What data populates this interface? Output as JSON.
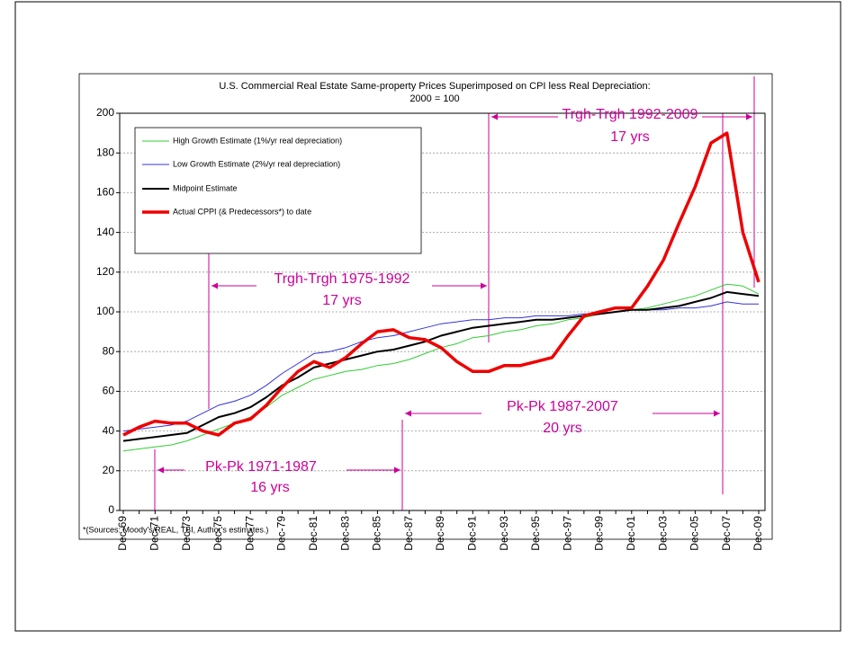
{
  "chart_data": {
    "type": "line",
    "title": "U.S. Commercial Real Estate Same-property Prices Superimposed on CPI less Real Depreciation:",
    "subtitle": "2000 = 100",
    "footnote": "*(Sources: Moody's/REAL, TBI, Author's estimates.)",
    "categories": [
      "Dec-69",
      null,
      "Dec-71",
      null,
      "Dec-73",
      null,
      "Dec-75",
      null,
      "Dec-77",
      null,
      "Dec-79",
      null,
      "Dec-81",
      null,
      "Dec-83",
      null,
      "Dec-85",
      null,
      "Dec-87",
      null,
      "Dec-89",
      null,
      "Dec-91",
      null,
      "Dec-93",
      null,
      "Dec-95",
      null,
      "Dec-97",
      null,
      "Dec-99",
      null,
      "Dec-01",
      null,
      "Dec-03",
      null,
      "Dec-05",
      null,
      "Dec-07",
      null,
      "Dec-09"
    ],
    "series": [
      {
        "name": "High Growth Estimate (1%/yr real depreciation)",
        "color": "#33cc33",
        "width": 1,
        "values": [
          30,
          31,
          32,
          33,
          35,
          38,
          41,
          44,
          47,
          52,
          58,
          62,
          66,
          68,
          70,
          71,
          73,
          74,
          76,
          79,
          82,
          84,
          87,
          88,
          90,
          91,
          93,
          94,
          96,
          97,
          99,
          100,
          101,
          102,
          104,
          106,
          108,
          111,
          114,
          113,
          109
        ]
      },
      {
        "name": "Low Growth Estimate (2%/yr real depreciation)",
        "color": "#3333dd",
        "width": 1,
        "values": [
          40,
          41,
          42,
          43,
          45,
          49,
          53,
          55,
          58,
          63,
          69,
          74,
          79,
          80,
          82,
          85,
          87,
          88,
          90,
          92,
          94,
          95,
          96,
          96,
          97,
          97,
          98,
          98,
          98,
          99,
          99,
          100,
          101,
          101,
          101,
          102,
          102,
          103,
          105,
          104,
          104
        ]
      },
      {
        "name": "Midpoint Estimate",
        "color": "#000000",
        "width": 2,
        "values": [
          35,
          36,
          37,
          38,
          39,
          43,
          47,
          49,
          52,
          57,
          63,
          67,
          72,
          74,
          76,
          78,
          80,
          81,
          83,
          85,
          88,
          90,
          92,
          93,
          94,
          95,
          96,
          96,
          97,
          98,
          99,
          100,
          101,
          101,
          102,
          103,
          105,
          107,
          110,
          109,
          108
        ]
      },
      {
        "name": "Actual CPPI (& Predecessors*) to date",
        "color": "#ee0000",
        "width": 3.5,
        "values": [
          38,
          42,
          45,
          44,
          44,
          40,
          38,
          44,
          46,
          53,
          62,
          70,
          75,
          72,
          77,
          84,
          90,
          91,
          87,
          86,
          82,
          75,
          70,
          70,
          73,
          73,
          75,
          77,
          88,
          98,
          100,
          102,
          102,
          113,
          126,
          145,
          163,
          185,
          190,
          140,
          115
        ]
      }
    ],
    "annotations": [
      "Trgh-Trgh 1992-2009",
      "17 yrs",
      "Trgh-Trgh 1975-1992",
      "17 yrs",
      "Pk-Pk 1987-2007",
      "20 yrs",
      "Pk-Pk 1971-1987",
      "16 yrs"
    ],
    "ylim": [
      0,
      200
    ],
    "yticks": [
      0,
      20,
      40,
      60,
      80,
      100,
      120,
      140,
      160,
      180,
      200
    ],
    "grid": true
  }
}
